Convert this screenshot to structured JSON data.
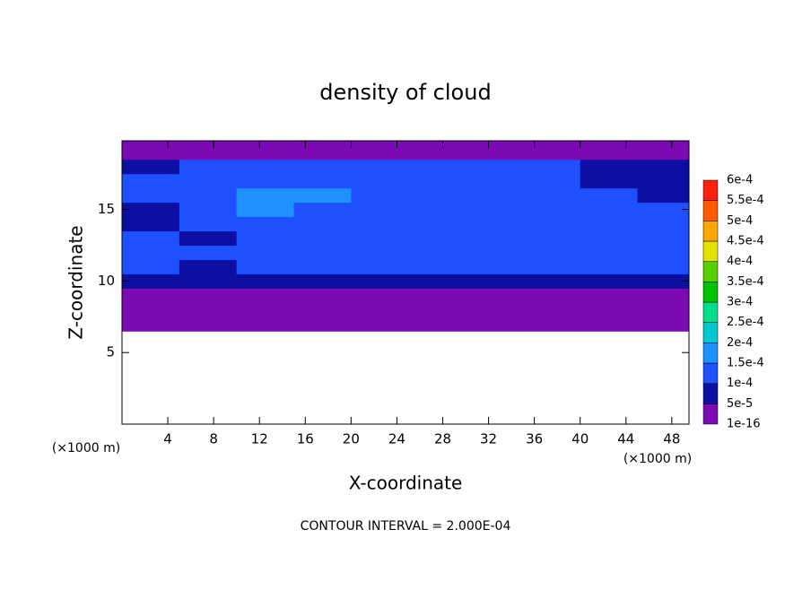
{
  "chart_data": {
    "type": "contour",
    "title": "density of cloud",
    "x_label": "X-coordinate",
    "y_label": "Z-coordinate",
    "x_unit": "(×1000 m)",
    "y_unit": "(×1000 m)",
    "footer": "CONTOUR INTERVAL = 2.000E-04",
    "xlim": [
      0,
      49.5
    ],
    "ylim": [
      0,
      19.8
    ],
    "xticks": [
      4,
      8,
      12,
      16,
      20,
      24,
      28,
      32,
      36,
      40,
      44,
      48
    ],
    "yticks": [
      5,
      10,
      15
    ],
    "x": [
      2.5,
      7.5,
      12.5,
      17.5,
      22.5,
      27.5,
      32.5,
      37.5,
      42.5,
      47.5
    ],
    "y": [
      7,
      8,
      9,
      10,
      11,
      12,
      13,
      14,
      15,
      16,
      17,
      18,
      19
    ],
    "z": [
      [
        3e-05,
        3e-05,
        3e-05,
        3e-05,
        3e-05,
        3e-05,
        3e-05,
        3e-05,
        3e-05,
        3e-05
      ],
      [
        3e-05,
        3e-05,
        3e-05,
        3e-05,
        3e-05,
        3e-05,
        3e-05,
        3e-05,
        3e-05,
        3e-05
      ],
      [
        3e-05,
        3e-05,
        3e-05,
        3e-05,
        3e-05,
        3e-05,
        3e-05,
        3e-05,
        3e-05,
        3e-05
      ],
      [
        7e-05,
        7e-05,
        7e-05,
        7e-05,
        7e-05,
        7e-05,
        7e-05,
        7e-05,
        7e-05,
        7e-05
      ],
      [
        0.00012,
        7e-05,
        0.00012,
        0.00012,
        0.00012,
        0.00012,
        0.00012,
        0.00012,
        0.00012,
        0.00011
      ],
      [
        0.00012,
        0.00012,
        0.00012,
        0.00012,
        0.00012,
        0.00012,
        0.00012,
        0.00012,
        0.00012,
        0.00012
      ],
      [
        0.00012,
        7e-05,
        0.00013,
        0.00013,
        0.00013,
        0.00013,
        0.00013,
        0.00013,
        0.00013,
        0.00012
      ],
      [
        7e-05,
        0.00013,
        0.00014,
        0.00013,
        0.00013,
        0.00013,
        0.00013,
        0.00013,
        0.00013,
        0.00012
      ],
      [
        8e-05,
        0.00014,
        0.00016,
        0.00014,
        0.00014,
        0.00014,
        0.00014,
        0.00014,
        0.00013,
        0.00012
      ],
      [
        0.00011,
        0.00014,
        0.00016,
        0.00016,
        0.00014,
        0.00014,
        0.00014,
        0.00013,
        0.00012,
        8e-05
      ],
      [
        0.00011,
        0.00013,
        0.00014,
        0.00014,
        0.00014,
        0.00013,
        0.00013,
        0.00012,
        8e-05,
        6e-05
      ],
      [
        7e-05,
        0.00012,
        0.00012,
        0.00012,
        0.00012,
        0.00012,
        0.00012,
        0.00011,
        7e-05,
        6e-05
      ],
      [
        4e-05,
        4e-05,
        4e-05,
        4e-05,
        4e-05,
        4e-05,
        4e-05,
        4e-05,
        4e-05,
        4e-05
      ]
    ],
    "colorbar": {
      "levels": [
        {
          "value": 1e-16,
          "label": "1e-16"
        },
        {
          "value": 5e-05,
          "label": "5e-5"
        },
        {
          "value": 0.0001,
          "label": "1e-4"
        },
        {
          "value": 0.00015,
          "label": "1.5e-4"
        },
        {
          "value": 0.0002,
          "label": "2e-4"
        },
        {
          "value": 0.00025,
          "label": "2.5e-4"
        },
        {
          "value": 0.0003,
          "label": "3e-4"
        },
        {
          "value": 0.00035,
          "label": "3.5e-4"
        },
        {
          "value": 0.0004,
          "label": "4e-4"
        },
        {
          "value": 0.00045,
          "label": "4.5e-4"
        },
        {
          "value": 0.0005,
          "label": "5e-4"
        },
        {
          "value": 0.00055,
          "label": "5.5e-4"
        },
        {
          "value": 0.0006,
          "label": "6e-4"
        }
      ],
      "colors": [
        "#7a0ab4",
        "#0c10a0",
        "#1e50ff",
        "#1e90ff",
        "#00c8d0",
        "#00e08c",
        "#00c400",
        "#58d000",
        "#e4e400",
        "#ffa400",
        "#ff5a00",
        "#ff2010"
      ]
    }
  }
}
